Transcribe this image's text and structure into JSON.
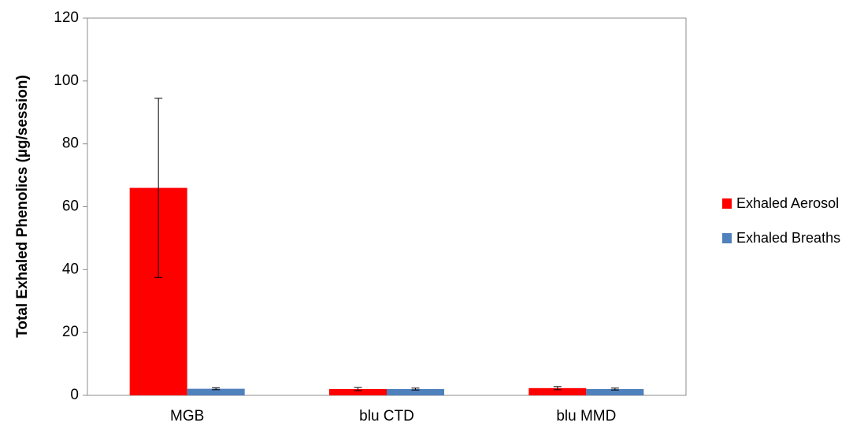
{
  "chart_data": {
    "type": "bar",
    "ylabel": "Total Exhaled Phenolics (µg/session)",
    "xlabel": "",
    "title": "",
    "categories": [
      "MGB",
      "blu CTD",
      "blu MMD"
    ],
    "ylim": [
      0,
      120
    ],
    "yticks": [
      0,
      20,
      40,
      60,
      80,
      100,
      120
    ],
    "grid": false,
    "legend_position": "right",
    "series": [
      {
        "name": "Exhaled Aerosol",
        "color": "#ff0000",
        "values": [
          66,
          2.0,
          2.3
        ],
        "error": [
          28.5,
          0.5,
          0.5
        ]
      },
      {
        "name": "Exhaled Breaths",
        "color": "#4f81bd",
        "values": [
          2.1,
          2.0,
          2.0
        ],
        "error": [
          0.3,
          0.3,
          0.3
        ]
      }
    ]
  }
}
